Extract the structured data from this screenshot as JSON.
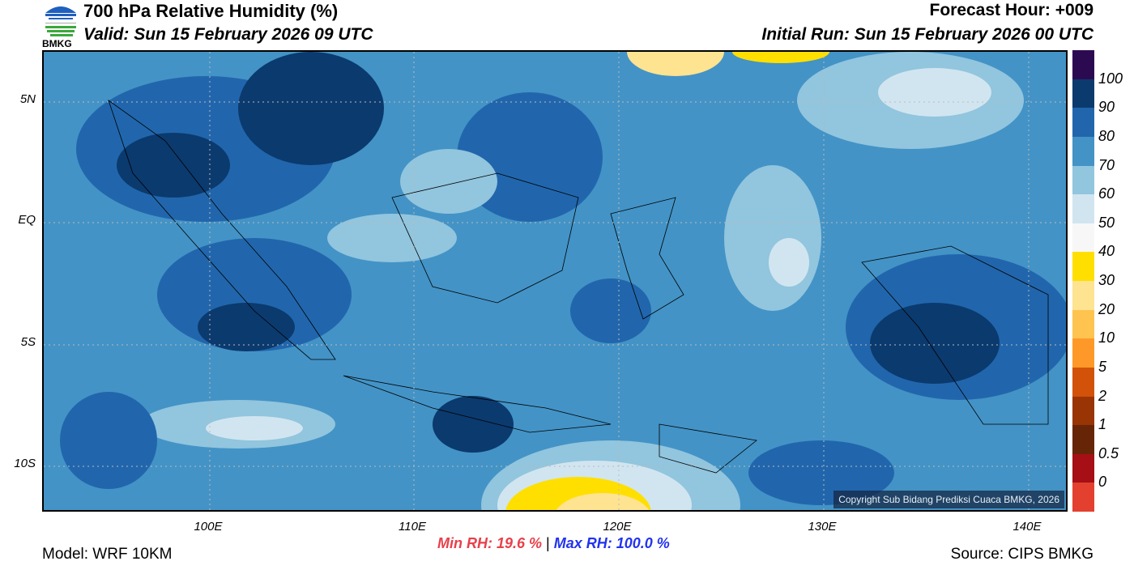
{
  "header": {
    "title": "700 hPa Relative Humidity (%)",
    "valid": "Valid: Sun 15 February 2026 09 UTC",
    "forecast_hour": "Forecast Hour: +009",
    "initial_run": "Initial Run: Sun 15 February 2026 00 UTC",
    "logo_text": "BMKG"
  },
  "map": {
    "copyright": "Copyright Sub Bidang Prediksi Cuaca BMKG, 2026",
    "lat_labels": [
      "5N",
      "EQ",
      "5S",
      "10S"
    ],
    "lon_labels": [
      "100E",
      "110E",
      "120E",
      "130E",
      "140E"
    ]
  },
  "colorbar": {
    "labels": [
      "100",
      "90",
      "80",
      "70",
      "60",
      "50",
      "40",
      "30",
      "20",
      "10",
      "5",
      "2",
      "1",
      "0.5",
      "0"
    ],
    "colors": [
      "#2b0a52",
      "#0b3a6e",
      "#2166ac",
      "#4393c6",
      "#92c5de",
      "#d1e5f0",
      "#f7f7f7",
      "#ffdf00",
      "#fee391",
      "#fec44f",
      "#fe9929",
      "#d2520a",
      "#993404",
      "#662506",
      "#a50f15",
      "#e3402f"
    ]
  },
  "footer": {
    "min_rh": "Min RH:  19.6 %",
    "separator": "|",
    "max_rh": "Max RH: 100.0 %",
    "model": "Model: WRF 10KM",
    "source": "Source: CIPS BMKG"
  }
}
